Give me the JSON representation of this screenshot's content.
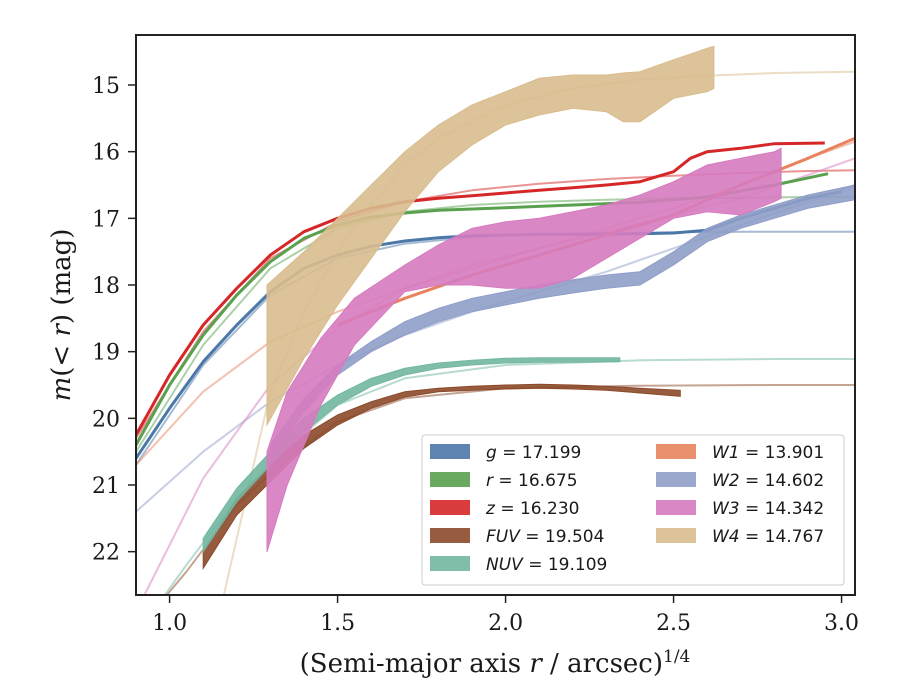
{
  "chart_data": {
    "type": "line",
    "xlabel": "(Semi-major axis r / arcsec)^1/4",
    "ylabel": "m(<r) (mag)",
    "xlim": [
      0.9,
      3.04
    ],
    "ylim": [
      22.65,
      14.25
    ],
    "y_inverted": true,
    "xticks": [
      1.0,
      1.5,
      2.0,
      2.5,
      3.0
    ],
    "xtick_labels": [
      "1.0",
      "1.5",
      "2.0",
      "2.5",
      "3.0"
    ],
    "yticks": [
      15,
      16,
      17,
      18,
      19,
      20,
      21,
      22
    ],
    "ytick_labels": [
      "15",
      "16",
      "17",
      "18",
      "19",
      "20",
      "21",
      "22"
    ],
    "grid": false,
    "legend_position": "lower-right",
    "series": [
      {
        "name": "g",
        "label": "g = 17.199",
        "color": "#4c78a8",
        "data_x": [
          0.9,
          1.0,
          1.1,
          1.2,
          1.3,
          1.4,
          1.5,
          1.6,
          1.7,
          1.8,
          1.9,
          2.0,
          2.1,
          2.2,
          2.3,
          2.4,
          2.5,
          2.6,
          2.7,
          2.8,
          2.9,
          3.0
        ],
        "data_y": [
          20.6,
          19.85,
          19.15,
          18.6,
          18.1,
          17.75,
          17.55,
          17.42,
          17.34,
          17.29,
          17.26,
          17.25,
          17.24,
          17.24,
          17.24,
          17.23,
          17.22,
          17.18,
          17.0,
          16.85,
          16.7,
          16.6
        ],
        "model_x": [
          0.9,
          1.1,
          1.3,
          1.5,
          1.7,
          1.9,
          2.1,
          2.3,
          2.5,
          2.7,
          2.9,
          3.04
        ],
        "model_y": [
          20.7,
          19.2,
          18.15,
          17.6,
          17.38,
          17.28,
          17.24,
          17.22,
          17.21,
          17.2,
          17.2,
          17.2
        ]
      },
      {
        "name": "r",
        "label": "r = 16.675",
        "color": "#59a14f",
        "data_x": [
          0.9,
          1.0,
          1.1,
          1.2,
          1.3,
          1.4,
          1.5,
          1.6,
          1.7,
          1.8,
          1.9,
          2.0,
          2.2,
          2.4,
          2.6,
          2.8,
          2.96
        ],
        "data_y": [
          20.4,
          19.5,
          18.75,
          18.15,
          17.65,
          17.3,
          17.1,
          16.98,
          16.92,
          16.88,
          16.86,
          16.84,
          16.8,
          16.76,
          16.68,
          16.5,
          16.33
        ],
        "model_x": [
          0.9,
          1.1,
          1.3,
          1.5,
          1.7,
          1.9,
          2.1,
          2.3,
          2.5,
          2.7,
          2.9,
          3.04
        ],
        "model_y": [
          20.5,
          18.9,
          17.75,
          17.15,
          16.9,
          16.8,
          16.75,
          16.72,
          16.7,
          16.69,
          16.68,
          16.68
        ]
      },
      {
        "name": "z",
        "label": "z = 16.230",
        "color": "#d62728",
        "data_x": [
          0.9,
          1.0,
          1.1,
          1.2,
          1.3,
          1.4,
          1.5,
          1.6,
          1.7,
          1.8,
          1.9,
          2.0,
          2.1,
          2.2,
          2.3,
          2.4,
          2.5,
          2.55,
          2.6,
          2.7,
          2.8,
          2.95
        ],
        "data_y": [
          20.25,
          19.35,
          18.6,
          18.05,
          17.55,
          17.2,
          17.0,
          16.85,
          16.75,
          16.7,
          16.66,
          16.62,
          16.58,
          16.54,
          16.5,
          16.45,
          16.3,
          16.1,
          16.0,
          15.95,
          15.88,
          15.87
        ],
        "model_x": [
          0.9,
          1.1,
          1.3,
          1.5,
          1.7,
          1.9,
          2.1,
          2.3,
          2.5,
          2.7,
          2.9,
          3.04
        ],
        "model_y": [
          20.3,
          18.7,
          17.6,
          17.05,
          16.75,
          16.58,
          16.48,
          16.41,
          16.36,
          16.32,
          16.29,
          16.28
        ]
      },
      {
        "name": "FUV",
        "label": "FUV = 19.504",
        "color": "#8c4a2a",
        "band": true,
        "data_x": [
          1.1,
          1.2,
          1.3,
          1.4,
          1.5,
          1.6,
          1.7,
          1.8,
          1.9,
          2.0,
          2.1,
          2.2,
          2.3,
          2.4,
          2.52
        ],
        "data_lo": [
          22.0,
          21.2,
          20.7,
          20.25,
          19.95,
          19.75,
          19.6,
          19.55,
          19.52,
          19.5,
          19.49,
          19.5,
          19.52,
          19.55,
          19.58
        ],
        "data_hi": [
          22.25,
          21.45,
          20.95,
          20.45,
          20.1,
          19.85,
          19.68,
          19.6,
          19.58,
          19.56,
          19.55,
          19.56,
          19.58,
          19.62,
          19.67
        ],
        "model_x": [
          0.95,
          1.05,
          1.2,
          1.35,
          1.5,
          1.7,
          2.0,
          2.4,
          2.8,
          3.04
        ],
        "model_y": [
          22.9,
          22.3,
          21.3,
          20.6,
          20.05,
          19.7,
          19.55,
          19.51,
          19.5,
          19.5
        ]
      },
      {
        "name": "NUV",
        "label": "NUV = 19.109",
        "color": "#72b7a1",
        "band": true,
        "data_x": [
          1.1,
          1.2,
          1.3,
          1.4,
          1.5,
          1.6,
          1.7,
          1.8,
          1.9,
          2.0,
          2.1,
          2.2,
          2.34
        ],
        "data_lo": [
          21.8,
          21.05,
          20.5,
          20.0,
          19.65,
          19.4,
          19.25,
          19.17,
          19.13,
          19.1,
          19.09,
          19.09,
          19.09
        ],
        "data_hi": [
          22.0,
          21.25,
          20.7,
          20.2,
          19.8,
          19.52,
          19.35,
          19.25,
          19.2,
          19.17,
          19.16,
          19.16,
          19.15
        ],
        "model_x": [
          0.95,
          1.05,
          1.2,
          1.35,
          1.5,
          1.7,
          2.0,
          2.4,
          2.8,
          3.04
        ],
        "model_y": [
          22.9,
          22.2,
          21.2,
          20.45,
          19.8,
          19.4,
          19.2,
          19.13,
          19.11,
          19.11
        ]
      },
      {
        "name": "W1",
        "label": "W1 = 13.901",
        "color": "#e8835d",
        "data_x": [
          1.5,
          1.7,
          1.9,
          2.1,
          2.3,
          2.5,
          2.7,
          2.9,
          3.04
        ],
        "data_y": [
          18.6,
          18.2,
          17.85,
          17.55,
          17.25,
          16.95,
          16.5,
          16.1,
          15.8
        ],
        "model_x": [
          0.9,
          1.1,
          1.3,
          1.5,
          1.7,
          1.9,
          2.1,
          2.3,
          2.5,
          2.7,
          2.9,
          3.04
        ],
        "model_y": [
          20.7,
          19.6,
          18.85,
          18.4,
          18.05,
          17.75,
          17.45,
          17.15,
          16.85,
          16.5,
          16.1,
          15.85
        ]
      },
      {
        "name": "W2",
        "label": "W2 = 14.602",
        "color": "#8f9ec8",
        "band": true,
        "data_x": [
          1.3,
          1.4,
          1.5,
          1.6,
          1.7,
          1.8,
          1.9,
          2.0,
          2.1,
          2.2,
          2.3,
          2.4,
          2.5,
          2.6,
          2.7,
          2.8,
          2.9,
          3.04
        ],
        "data_lo": [
          20.4,
          19.7,
          19.2,
          18.85,
          18.55,
          18.35,
          18.2,
          18.1,
          18.0,
          17.92,
          17.85,
          17.8,
          17.5,
          17.15,
          16.95,
          16.8,
          16.65,
          16.5
        ],
        "data_hi": [
          20.6,
          19.9,
          19.35,
          19.0,
          18.75,
          18.55,
          18.4,
          18.3,
          18.2,
          18.12,
          18.05,
          18.0,
          17.7,
          17.35,
          17.15,
          17.0,
          16.85,
          16.72
        ],
        "model_x": [
          0.9,
          1.1,
          1.3,
          1.5,
          1.7,
          1.9,
          2.1,
          2.3,
          2.5,
          2.7,
          2.9,
          3.04
        ],
        "model_y": [
          21.4,
          20.5,
          19.75,
          19.2,
          18.75,
          18.4,
          18.1,
          17.8,
          17.45,
          17.1,
          16.75,
          16.5
        ]
      },
      {
        "name": "W3",
        "label": "W3 = 14.342",
        "color": "#d67bbf",
        "band": true,
        "data_x": [
          1.29,
          1.35,
          1.45,
          1.55,
          1.7,
          1.8,
          1.9,
          2.0,
          2.1,
          2.2,
          2.3,
          2.4,
          2.5,
          2.6,
          2.7,
          2.8,
          2.82
        ],
        "data_lo": [
          22.0,
          21.0,
          19.8,
          18.9,
          18.1,
          18.0,
          18.0,
          18.05,
          18.05,
          17.9,
          17.6,
          17.3,
          17.0,
          16.9,
          16.95,
          16.75,
          16.7
        ],
        "data_hi": [
          20.5,
          19.6,
          18.8,
          18.2,
          17.7,
          17.4,
          17.15,
          17.05,
          17.0,
          16.9,
          16.8,
          16.65,
          16.45,
          16.2,
          16.1,
          16.0,
          15.95
        ],
        "model_x": [
          0.9,
          1.1,
          1.3,
          1.5,
          1.7,
          1.9,
          2.1,
          2.3,
          2.5,
          2.7,
          2.9,
          3.04
        ],
        "model_y": [
          22.9,
          20.9,
          19.5,
          18.65,
          18.05,
          17.7,
          17.45,
          17.2,
          16.95,
          16.7,
          16.35,
          16.1
        ]
      },
      {
        "name": "W4",
        "label": "W4 = 14.767",
        "color": "#d9bc8e",
        "band": true,
        "data_x": [
          1.29,
          1.4,
          1.5,
          1.6,
          1.7,
          1.8,
          1.9,
          2.0,
          2.1,
          2.2,
          2.3,
          2.35,
          2.4,
          2.5,
          2.6,
          2.62
        ],
        "data_lo": [
          20.1,
          19.1,
          18.3,
          17.6,
          16.9,
          16.3,
          15.9,
          15.6,
          15.45,
          15.35,
          15.4,
          15.55,
          15.55,
          15.2,
          15.1,
          15.05
        ],
        "data_hi": [
          18.0,
          17.5,
          17.0,
          16.5,
          16.0,
          15.6,
          15.3,
          15.1,
          14.9,
          14.85,
          14.85,
          14.82,
          14.8,
          14.62,
          14.45,
          14.42
        ],
        "model_x": [
          1.1,
          1.2,
          1.3,
          1.4,
          1.5,
          1.6,
          1.7,
          1.8,
          2.0,
          2.2,
          2.4,
          2.6,
          2.8,
          3.04
        ],
        "model_y": [
          24.0,
          21.8,
          19.6,
          18.4,
          17.5,
          16.8,
          16.2,
          15.8,
          15.3,
          15.05,
          14.92,
          14.86,
          14.82,
          14.8
        ]
      }
    ],
    "legend_columns": [
      [
        "g",
        "r",
        "z",
        "FUV",
        "NUV"
      ],
      [
        "W1",
        "W2",
        "W3",
        "W4"
      ]
    ],
    "legend": [
      {
        "prefix": "g",
        "value": "= 17.199"
      },
      {
        "prefix": "r",
        "value": "= 16.675"
      },
      {
        "prefix": "z",
        "value": "= 16.230"
      },
      {
        "prefix": "FUV",
        "value": "= 19.504"
      },
      {
        "prefix": "NUV",
        "value": "= 19.109"
      },
      {
        "prefix": "W1",
        "value": "= 13.901"
      },
      {
        "prefix": "W2",
        "value": "= 14.602"
      },
      {
        "prefix": "W3",
        "value": "= 14.342"
      },
      {
        "prefix": "W4",
        "value": "= 14.767"
      }
    ]
  }
}
